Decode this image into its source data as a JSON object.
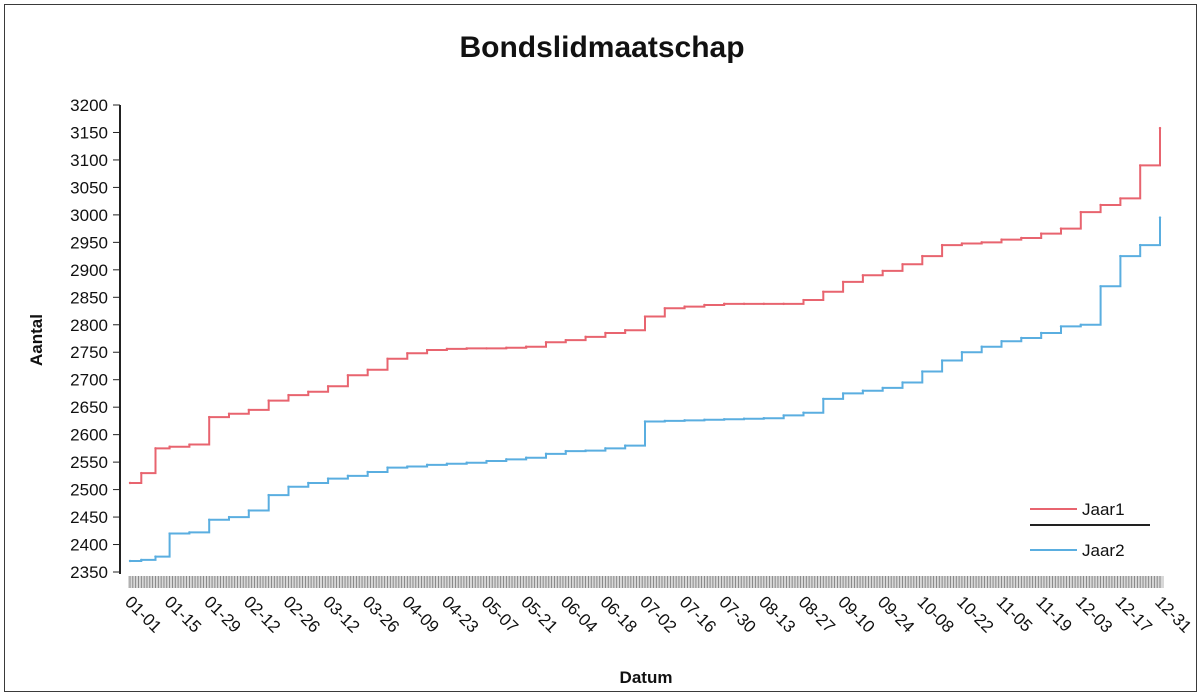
{
  "chart_data": {
    "type": "line",
    "title": "Bondslidmaatschap",
    "xlabel": "Datum",
    "ylabel": "Aantal",
    "ylim": [
      2350,
      3200
    ],
    "y_ticks": [
      2350,
      2400,
      2450,
      2500,
      2550,
      2600,
      2650,
      2700,
      2750,
      2800,
      2850,
      2900,
      2950,
      3000,
      3050,
      3100,
      3150,
      3200
    ],
    "x_range": [
      "01-01",
      "12-31"
    ],
    "x_ticks": [
      "01-01",
      "01-15",
      "01-29",
      "02-12",
      "02-26",
      "03-12",
      "03-26",
      "04-09",
      "04-23",
      "05-07",
      "05-21",
      "06-04",
      "06-18",
      "07-02",
      "07-16",
      "07-30",
      "08-13",
      "08-27",
      "09-10",
      "09-24",
      "10-08",
      "10-22",
      "11-05",
      "11-19",
      "12-03",
      "12-17",
      "12-31"
    ],
    "grid": false,
    "legend_position": "bottom-right",
    "series": [
      {
        "name": "Jaar1",
        "color": "#e8646f",
        "x": [
          "01-01",
          "01-05",
          "01-10",
          "01-15",
          "01-22",
          "01-29",
          "02-05",
          "02-12",
          "02-19",
          "02-26",
          "03-05",
          "03-12",
          "03-19",
          "03-26",
          "04-02",
          "04-09",
          "04-16",
          "04-23",
          "04-30",
          "05-07",
          "05-14",
          "05-21",
          "05-28",
          "06-04",
          "06-11",
          "06-18",
          "06-25",
          "07-02",
          "07-09",
          "07-16",
          "07-23",
          "07-30",
          "08-06",
          "08-13",
          "08-20",
          "08-27",
          "09-03",
          "09-10",
          "09-17",
          "09-24",
          "10-01",
          "10-08",
          "10-15",
          "10-22",
          "10-29",
          "11-05",
          "11-12",
          "11-19",
          "11-26",
          "12-03",
          "12-10",
          "12-17",
          "12-24",
          "12-31"
        ],
        "values": [
          2512,
          2530,
          2575,
          2578,
          2582,
          2632,
          2638,
          2645,
          2662,
          2672,
          2678,
          2688,
          2708,
          2718,
          2738,
          2748,
          2754,
          2756,
          2757,
          2757,
          2758,
          2760,
          2768,
          2772,
          2778,
          2785,
          2790,
          2815,
          2830,
          2833,
          2836,
          2838,
          2838,
          2838,
          2838,
          2845,
          2860,
          2878,
          2890,
          2898,
          2910,
          2925,
          2945,
          2948,
          2950,
          2955,
          2958,
          2966,
          2975,
          3005,
          3018,
          3030,
          3090,
          3158
        ]
      },
      {
        "name": "Jaar2",
        "color": "#5aaee0",
        "x": [
          "01-01",
          "01-05",
          "01-10",
          "01-15",
          "01-22",
          "01-29",
          "02-05",
          "02-12",
          "02-19",
          "02-26",
          "03-05",
          "03-12",
          "03-19",
          "03-26",
          "04-02",
          "04-09",
          "04-16",
          "04-23",
          "04-30",
          "05-07",
          "05-14",
          "05-21",
          "05-28",
          "06-04",
          "06-11",
          "06-18",
          "06-25",
          "07-02",
          "07-09",
          "07-16",
          "07-23",
          "07-30",
          "08-06",
          "08-13",
          "08-20",
          "08-27",
          "09-03",
          "09-10",
          "09-17",
          "09-24",
          "10-01",
          "10-08",
          "10-15",
          "10-22",
          "10-29",
          "11-05",
          "11-12",
          "11-19",
          "11-26",
          "12-03",
          "12-10",
          "12-17",
          "12-24",
          "12-31"
        ],
        "values": [
          2370,
          2372,
          2378,
          2420,
          2422,
          2445,
          2450,
          2462,
          2490,
          2505,
          2512,
          2520,
          2525,
          2532,
          2540,
          2542,
          2545,
          2547,
          2549,
          2552,
          2555,
          2558,
          2565,
          2570,
          2571,
          2575,
          2580,
          2624,
          2625,
          2626,
          2627,
          2628,
          2629,
          2630,
          2635,
          2640,
          2665,
          2675,
          2680,
          2685,
          2695,
          2715,
          2735,
          2750,
          2760,
          2770,
          2776,
          2785,
          2797,
          2800,
          2870,
          2925,
          2945,
          2995
        ]
      }
    ]
  }
}
